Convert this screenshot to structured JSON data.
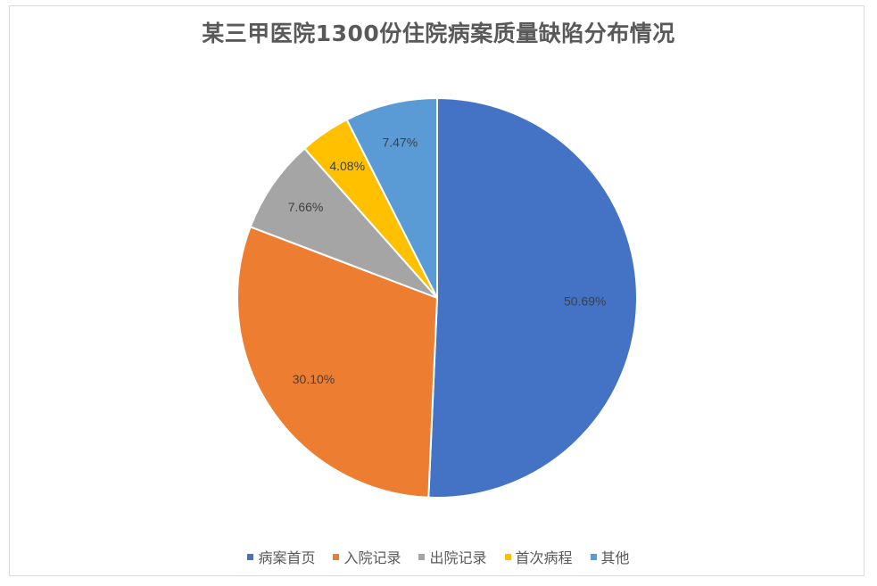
{
  "chart_data": {
    "type": "pie",
    "title": "某三甲医院1300份住院病案质量缺陷分布情况",
    "categories": [
      "病案首页",
      "入院记录",
      "出院记录",
      "首次病程",
      "其他"
    ],
    "values": [
      50.69,
      30.1,
      7.66,
      4.08,
      7.47
    ],
    "labels": [
      "50.69%",
      "30.10%",
      "7.66%",
      "4.08%",
      "7.47%"
    ],
    "colors": [
      "#4472c4",
      "#ed7d31",
      "#a5a5a5",
      "#ffc000",
      "#5b9bd5"
    ],
    "legend_position": "bottom",
    "start_angle": "12 o'clock, clockwise"
  },
  "legend": {
    "items": [
      {
        "label": "病案首页",
        "color": "#4472c4"
      },
      {
        "label": "入院记录",
        "color": "#ed7d31"
      },
      {
        "label": "出院记录",
        "color": "#a5a5a5"
      },
      {
        "label": "首次病程",
        "color": "#ffc000"
      },
      {
        "label": "其他",
        "color": "#5b9bd5"
      }
    ]
  }
}
